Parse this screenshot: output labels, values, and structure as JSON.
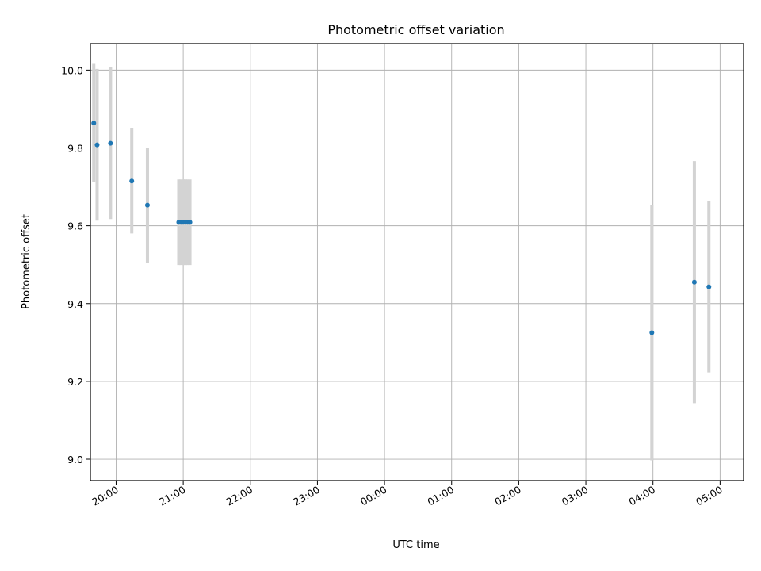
{
  "chart_data": {
    "type": "scatter",
    "title": "Photometric offset variation",
    "xlabel": "UTC time",
    "ylabel": "Photometric offset",
    "x_unit": "UTC time (HH:MM), night spans midnight",
    "xlim": [
      "19:37",
      "05:21"
    ],
    "ylim": [
      8.945,
      10.068
    ],
    "x_ticks": [
      "20:00",
      "21:00",
      "22:00",
      "23:00",
      "00:00",
      "01:00",
      "02:00",
      "03:00",
      "04:00",
      "05:00"
    ],
    "y_ticks": [
      "9.0",
      "9.2",
      "9.4",
      "9.6",
      "9.8",
      "10.0"
    ],
    "grid": true,
    "point_color": "#1f77b4",
    "errorbar_color": "#d3d3d3",
    "points": [
      {
        "x": "19:40",
        "y": 9.864,
        "yerr": 0.152
      },
      {
        "x": "19:43",
        "y": 9.808,
        "yerr": 0.195
      },
      {
        "x": "19:55",
        "y": 9.812,
        "yerr": 0.195
      },
      {
        "x": "20:14",
        "y": 9.715,
        "yerr": 0.135
      },
      {
        "x": "20:28",
        "y": 9.653,
        "yerr": 0.148
      },
      {
        "x": "20:56",
        "y": 9.609,
        "yerr": 0.11
      },
      {
        "x": "20:58",
        "y": 9.609,
        "yerr": 0.11
      },
      {
        "x": "21:00",
        "y": 9.609,
        "yerr": 0.11
      },
      {
        "x": "21:02",
        "y": 9.609,
        "yerr": 0.11
      },
      {
        "x": "21:04",
        "y": 9.609,
        "yerr": 0.11
      },
      {
        "x": "21:06",
        "y": 9.609,
        "yerr": 0.11
      },
      {
        "x": "03:59",
        "y": 9.325,
        "yerr": 0.328
      },
      {
        "x": "04:37",
        "y": 9.455,
        "yerr": 0.311
      },
      {
        "x": "04:50",
        "y": 9.443,
        "yerr": 0.22
      }
    ]
  }
}
